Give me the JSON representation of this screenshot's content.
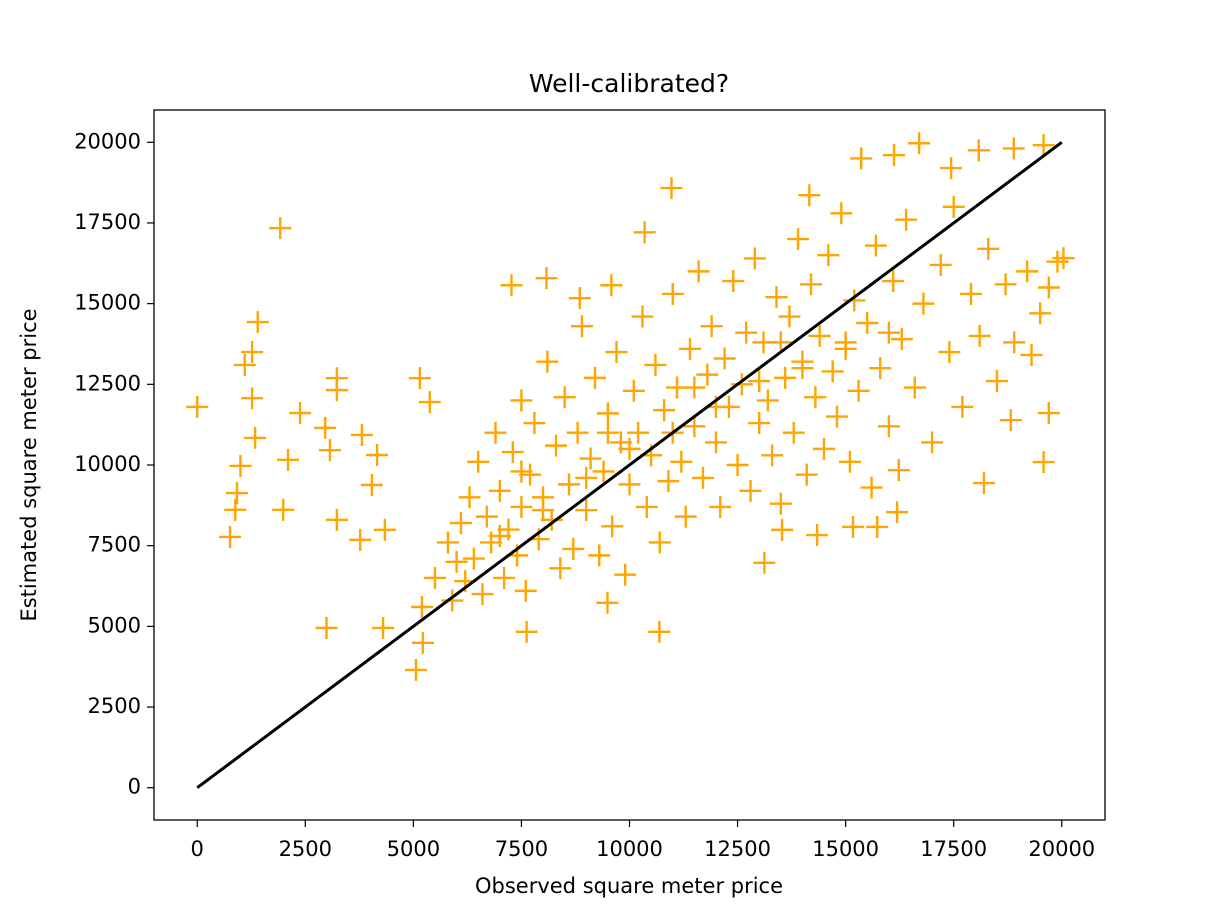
{
  "chart_data": {
    "type": "scatter",
    "title": "Well-calibrated?",
    "x_label": "Observed square meter price",
    "y_label": "Estimated square meter price",
    "xlim": [
      -1000,
      21000
    ],
    "ylim": [
      -1000,
      21000
    ],
    "xticks": [
      0,
      2500,
      5000,
      7500,
      10000,
      12500,
      15000,
      17500,
      20000
    ],
    "yticks": [
      0,
      2500,
      5000,
      7500,
      10000,
      12500,
      15000,
      17500,
      20000
    ],
    "grid": false,
    "series": [
      {
        "color": "#ffa500",
        "marker": "+",
        "x": [
          0,
          1920,
          1400,
          1270,
          1100,
          1270,
          1340,
          1000,
          2100,
          1990,
          760,
          880,
          920,
          2380,
          2960,
          3070,
          3230,
          3230,
          3230,
          2990,
          3810,
          4160,
          4040,
          3770,
          4340,
          4300,
          5150,
          5380,
          5060,
          5220,
          7270,
          8080,
          8850,
          10970,
          10690,
          7620,
          9490,
          13120,
          9580,
          10350,
          18890,
          19580,
          18080,
          16700,
          19580,
          19700,
          20040,
          19300,
          18820,
          18200,
          16230,
          16190,
          15170,
          15730,
          14340,
          13530,
          15360,
          16120,
          17440,
          14160,
          5200,
          5500,
          5800,
          5900,
          6100,
          6200,
          6300,
          6400,
          6500,
          6600,
          6700,
          6800,
          6900,
          7000,
          7100,
          7200,
          7300,
          7400,
          7500,
          7500,
          7600,
          7700,
          7800,
          7900,
          8000,
          8100,
          8200,
          8300,
          8400,
          8500,
          8600,
          8700,
          8800,
          8900,
          9000,
          9100,
          9200,
          9300,
          9400,
          9500,
          9600,
          9700,
          9800,
          9900,
          10000,
          10100,
          10200,
          10300,
          10400,
          10500,
          10600,
          10700,
          10800,
          10900,
          11000,
          11100,
          11200,
          11300,
          11400,
          11500,
          11600,
          11700,
          11800,
          11900,
          12000,
          12100,
          12200,
          12300,
          12400,
          12500,
          12600,
          12700,
          12800,
          12900,
          13000,
          13100,
          13200,
          13300,
          13400,
          13500,
          13600,
          13700,
          13800,
          13900,
          14000,
          14100,
          14200,
          14300,
          14400,
          14500,
          14600,
          14700,
          14800,
          14900,
          15000,
          15100,
          15200,
          15300,
          15500,
          15600,
          15700,
          15800,
          16000,
          16100,
          16300,
          16400,
          16600,
          16800,
          17000,
          17200,
          17400,
          17500,
          17700,
          17900,
          18100,
          18300,
          18500,
          18700,
          18900,
          19200,
          19500,
          19700,
          19900,
          6000,
          7000,
          8000,
          9000,
          10000,
          11000,
          12000,
          13000,
          14000,
          15000,
          16000,
          7500,
          9500,
          11500,
          13500
        ],
        "y": [
          11800,
          17340,
          14430,
          13500,
          13100,
          12070,
          10840,
          9970,
          10160,
          8610,
          7770,
          8610,
          9130,
          11610,
          11150,
          10460,
          12690,
          12320,
          8300,
          4950,
          10930,
          10310,
          9380,
          7680,
          7990,
          4950,
          12690,
          11950,
          3650,
          4490,
          15570,
          15790,
          15170,
          18580,
          4830,
          4830,
          5730,
          6970,
          15570,
          17210,
          19810,
          19910,
          19750,
          19970,
          10090,
          11610,
          16410,
          13410,
          11390,
          9440,
          9840,
          8540,
          8080,
          8080,
          7830,
          7990,
          19500,
          19600,
          19200,
          18360,
          5600,
          6500,
          7600,
          5800,
          8200,
          6400,
          9000,
          7100,
          10100,
          6000,
          8400,
          7600,
          11000,
          9200,
          6500,
          8000,
          10400,
          7200,
          12000,
          8700,
          6100,
          9700,
          11300,
          7700,
          9000,
          13200,
          8300,
          10600,
          6800,
          12100,
          9400,
          7400,
          11000,
          14300,
          8600,
          10200,
          12700,
          7200,
          9800,
          11600,
          8100,
          13500,
          10700,
          6600,
          9400,
          12300,
          11000,
          14600,
          8700,
          10300,
          13100,
          7600,
          11700,
          9500,
          15300,
          12400,
          10100,
          8400,
          13600,
          11200,
          16000,
          9600,
          12800,
          14300,
          10700,
          8700,
          13300,
          11800,
          15700,
          10000,
          12500,
          14100,
          9200,
          16400,
          11300,
          13800,
          12000,
          10300,
          15200,
          8800,
          12700,
          14600,
          11000,
          17000,
          13200,
          9700,
          15600,
          12100,
          14000,
          10500,
          16500,
          12900,
          11500,
          17800,
          13800,
          10100,
          15100,
          12300,
          14400,
          9300,
          16800,
          13000,
          11200,
          15700,
          13900,
          17600,
          12400,
          15000,
          10700,
          16200,
          13500,
          18000,
          11800,
          15300,
          14000,
          16700,
          12600,
          15600,
          13800,
          16000,
          14700,
          15500,
          16300,
          7000,
          7800,
          8600,
          9600,
          10500,
          11000,
          11800,
          12600,
          13000,
          13600,
          14100,
          9800,
          11000,
          12400,
          13800
        ]
      }
    ],
    "line": {
      "color": "#000000",
      "x": [
        0,
        20000
      ],
      "y": [
        0,
        20000
      ]
    }
  }
}
